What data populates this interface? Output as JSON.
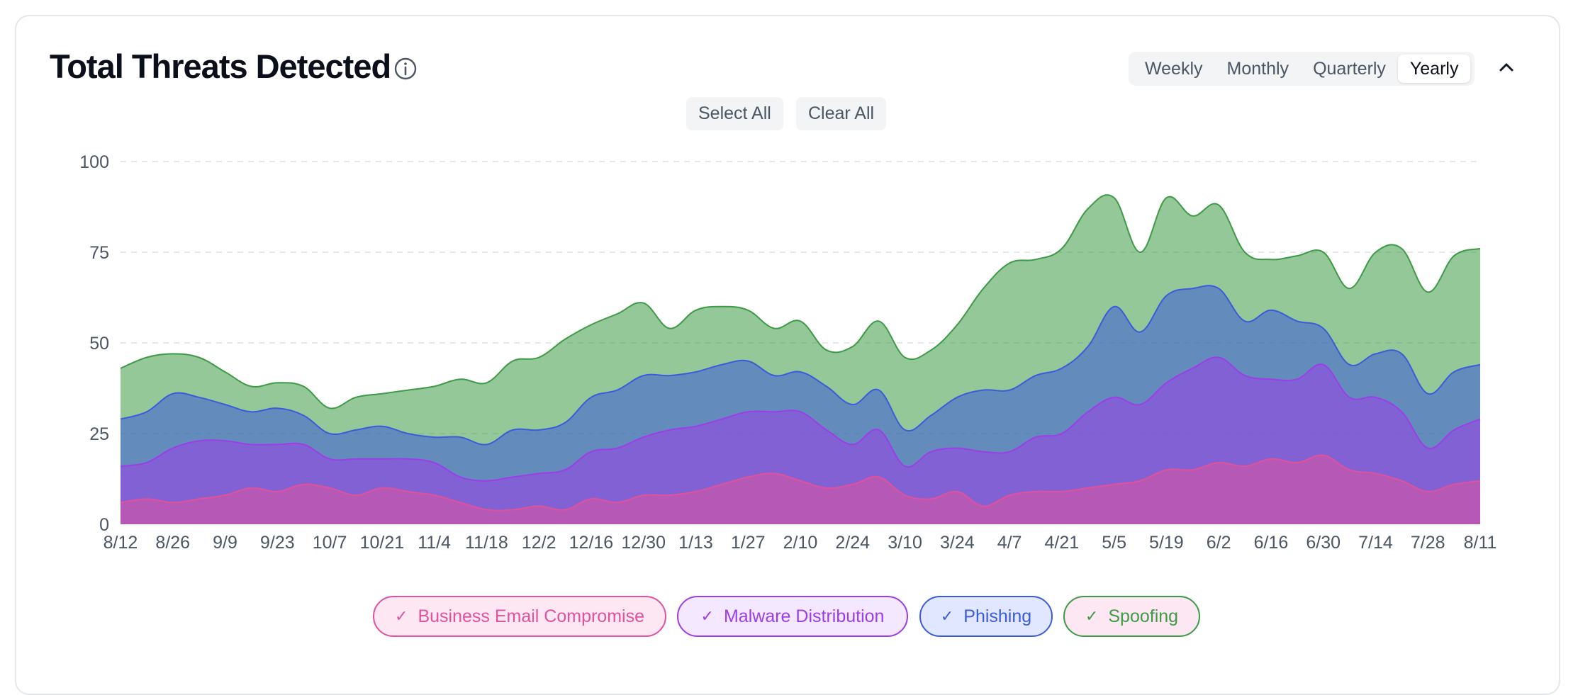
{
  "header": {
    "title": "Total Threats Detected",
    "period_options": [
      "Weekly",
      "Monthly",
      "Quarterly",
      "Yearly"
    ],
    "active_period": "Yearly",
    "select_all_label": "Select All",
    "clear_all_label": "Clear All"
  },
  "colors": {
    "bec": "#e0529c",
    "malware": "#9b3ee8",
    "phishing": "#3b5bdb",
    "spoofing": "#3d9a45",
    "grid": "#e5e7eb",
    "axis_text": "#4b5563"
  },
  "chart_data": {
    "type": "area",
    "stacked": true,
    "y_ticks": [
      0,
      25,
      50,
      75,
      100
    ],
    "ylim": [
      0,
      100
    ],
    "x_tick_labels": [
      "8/12",
      "8/26",
      "9/9",
      "9/23",
      "10/7",
      "10/21",
      "11/4",
      "11/18",
      "12/2",
      "12/16",
      "12/30",
      "1/13",
      "1/27",
      "2/10",
      "2/24",
      "3/10",
      "3/24",
      "4/7",
      "4/21",
      "5/5",
      "5/19",
      "6/2",
      "6/16",
      "6/30",
      "7/14",
      "7/28",
      "8/11"
    ],
    "grid": "horizontal dashed",
    "legend_position": "bottom-center",
    "x": [
      "8/12",
      "8/19",
      "8/26",
      "9/2",
      "9/9",
      "9/16",
      "9/23",
      "9/30",
      "10/7",
      "10/14",
      "10/21",
      "10/28",
      "11/4",
      "11/11",
      "11/18",
      "11/25",
      "12/2",
      "12/9",
      "12/16",
      "12/23",
      "12/30",
      "1/6",
      "1/13",
      "1/20",
      "1/27",
      "2/3",
      "2/10",
      "2/17",
      "2/24",
      "3/3",
      "3/10",
      "3/17",
      "3/24",
      "3/31",
      "4/7",
      "4/14",
      "4/21",
      "4/28",
      "5/5",
      "5/12",
      "5/19",
      "5/26",
      "6/2",
      "6/9",
      "6/16",
      "6/23",
      "6/30",
      "7/7",
      "7/14",
      "7/21",
      "7/28",
      "8/4",
      "8/11"
    ],
    "series": [
      {
        "name": "Business Email Compromise",
        "values": [
          6,
          7,
          6,
          7,
          8,
          10,
          9,
          11,
          10,
          8,
          10,
          9,
          8,
          6,
          4,
          4,
          5,
          4,
          7,
          6,
          8,
          8,
          9,
          11,
          13,
          14,
          12,
          10,
          11,
          13,
          8,
          7,
          9,
          5,
          8,
          9,
          9,
          10,
          11,
          12,
          15,
          15,
          17,
          16,
          18,
          17,
          19,
          15,
          14,
          12,
          9,
          11,
          12
        ]
      },
      {
        "name": "Malware Distribution",
        "values": [
          10,
          10,
          15,
          16,
          15,
          12,
          13,
          11,
          8,
          10,
          8,
          9,
          9,
          7,
          8,
          9,
          9,
          11,
          13,
          15,
          16,
          18,
          18,
          18,
          18,
          17,
          19,
          16,
          11,
          13,
          8,
          13,
          12,
          15,
          12,
          15,
          16,
          21,
          24,
          21,
          24,
          28,
          29,
          25,
          22,
          23,
          25,
          20,
          21,
          19,
          12,
          15,
          17
        ]
      },
      {
        "name": "Phishing",
        "values": [
          13,
          14,
          15,
          12,
          10,
          9,
          10,
          8,
          7,
          8,
          9,
          7,
          7,
          11,
          10,
          13,
          12,
          13,
          15,
          16,
          17,
          15,
          15,
          15,
          14,
          10,
          11,
          12,
          11,
          11,
          10,
          10,
          14,
          17,
          17,
          17,
          18,
          18,
          25,
          20,
          24,
          22,
          19,
          15,
          19,
          16,
          10,
          9,
          12,
          16,
          15,
          16,
          15
        ]
      },
      {
        "name": "Spoofing",
        "values": [
          14,
          15,
          11,
          11,
          9,
          7,
          7,
          8,
          7,
          9,
          9,
          12,
          14,
          16,
          17,
          19,
          20,
          23,
          20,
          21,
          20,
          13,
          17,
          16,
          14,
          13,
          14,
          10,
          16,
          19,
          20,
          18,
          20,
          28,
          35,
          32,
          33,
          38,
          30,
          22,
          27,
          20,
          23,
          19,
          14,
          18,
          21,
          21,
          28,
          29,
          28,
          32,
          32
        ]
      }
    ]
  },
  "legend": [
    {
      "label": "Business Email Compromise",
      "color_key": "bec",
      "bg": "#fce7f3"
    },
    {
      "label": "Malware Distribution",
      "color_key": "malware",
      "bg": "#f3e8ff"
    },
    {
      "label": "Phishing",
      "color_key": "phishing",
      "bg": "#e0e7ff"
    },
    {
      "label": "Spoofing",
      "color_key": "spoofing",
      "bg": "#fce7f3"
    }
  ]
}
